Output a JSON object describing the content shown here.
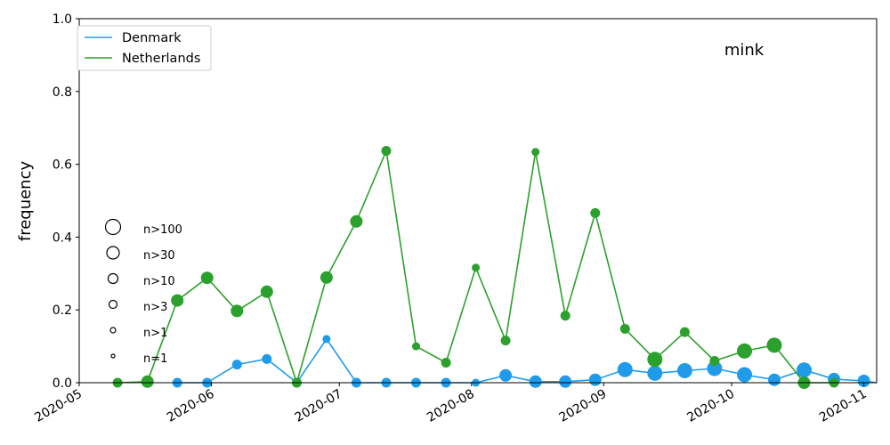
{
  "chart_data": {
    "type": "line",
    "annotation": "mink",
    "ylabel": "frequency",
    "xlabel": "",
    "xlim": [
      "2020-05-01",
      "2020-11-04"
    ],
    "ylim": [
      0,
      1.0
    ],
    "x_ticks": [
      "2020-05",
      "2020-06",
      "2020-07",
      "2020-08",
      "2020-09",
      "2020-10",
      "2020-11"
    ],
    "x_tick_dates": [
      "2020-05-01",
      "2020-06-01",
      "2020-07-01",
      "2020-08-01",
      "2020-09-01",
      "2020-10-01",
      "2020-11-01"
    ],
    "y_ticks": [
      "0.0",
      "0.2",
      "0.4",
      "0.6",
      "0.8",
      "1.0"
    ],
    "y_tick_values": [
      0,
      0.2,
      0.4,
      0.6,
      0.8,
      1.0
    ],
    "grid": false,
    "legend_placement": "top-left",
    "size_legend": [
      {
        "label": "n>100",
        "level": 6
      },
      {
        "label": "n>30",
        "level": 5
      },
      {
        "label": "n>10",
        "level": 4
      },
      {
        "label": "n>3",
        "level": 3
      },
      {
        "label": "n>1",
        "level": 2
      },
      {
        "label": "n=1",
        "level": 1
      }
    ],
    "series": [
      {
        "name": "Denmark",
        "color": "#1f9bea",
        "points": [
          {
            "x": "2020-05-24",
            "y": 0.0,
            "level": 4
          },
          {
            "x": "2020-05-31",
            "y": 0.0,
            "level": 4
          },
          {
            "x": "2020-06-07",
            "y": 0.05,
            "level": 4
          },
          {
            "x": "2020-06-14",
            "y": 0.065,
            "level": 4
          },
          {
            "x": "2020-06-21",
            "y": 0.0,
            "level": 4
          },
          {
            "x": "2020-06-28",
            "y": 0.12,
            "level": 3
          },
          {
            "x": "2020-07-05",
            "y": 0.0,
            "level": 4
          },
          {
            "x": "2020-07-12",
            "y": 0.0,
            "level": 4
          },
          {
            "x": "2020-07-19",
            "y": 0.0,
            "level": 4
          },
          {
            "x": "2020-07-26",
            "y": 0.0,
            "level": 4
          },
          {
            "x": "2020-08-02",
            "y": 0.0,
            "level": 3
          },
          {
            "x": "2020-08-09",
            "y": 0.02,
            "level": 5
          },
          {
            "x": "2020-08-16",
            "y": 0.003,
            "level": 5
          },
          {
            "x": "2020-08-23",
            "y": 0.003,
            "level": 5
          },
          {
            "x": "2020-08-30",
            "y": 0.008,
            "level": 5
          },
          {
            "x": "2020-09-06",
            "y": 0.036,
            "level": 6
          },
          {
            "x": "2020-09-13",
            "y": 0.026,
            "level": 6
          },
          {
            "x": "2020-09-20",
            "y": 0.033,
            "level": 6
          },
          {
            "x": "2020-09-27",
            "y": 0.039,
            "level": 6
          },
          {
            "x": "2020-10-04",
            "y": 0.022,
            "level": 6
          },
          {
            "x": "2020-10-11",
            "y": 0.008,
            "level": 5
          },
          {
            "x": "2020-10-18",
            "y": 0.035,
            "level": 6
          },
          {
            "x": "2020-10-25",
            "y": 0.01,
            "level": 5
          },
          {
            "x": "2020-11-01",
            "y": 0.005,
            "level": 5
          },
          {
            "x": "2020-11-04",
            "y": 0.0,
            "level": 0
          }
        ]
      },
      {
        "name": "Netherlands",
        "color": "#2ca02c",
        "points": [
          {
            "x": "2020-05-10",
            "y": 0.0,
            "level": 4
          },
          {
            "x": "2020-05-17",
            "y": 0.003,
            "level": 5
          },
          {
            "x": "2020-05-24",
            "y": 0.226,
            "level": 5
          },
          {
            "x": "2020-05-31",
            "y": 0.288,
            "level": 5
          },
          {
            "x": "2020-06-07",
            "y": 0.197,
            "level": 5
          },
          {
            "x": "2020-06-14",
            "y": 0.25,
            "level": 5
          },
          {
            "x": "2020-06-21",
            "y": 0.0,
            "level": 4
          },
          {
            "x": "2020-06-28",
            "y": 0.289,
            "level": 5
          },
          {
            "x": "2020-07-05",
            "y": 0.443,
            "level": 5
          },
          {
            "x": "2020-07-12",
            "y": 0.637,
            "level": 4
          },
          {
            "x": "2020-07-19",
            "y": 0.1,
            "level": 3
          },
          {
            "x": "2020-07-26",
            "y": 0.055,
            "level": 4
          },
          {
            "x": "2020-08-02",
            "y": 0.316,
            "level": 3
          },
          {
            "x": "2020-08-09",
            "y": 0.116,
            "level": 4
          },
          {
            "x": "2020-08-16",
            "y": 0.634,
            "level": 3
          },
          {
            "x": "2020-08-23",
            "y": 0.184,
            "level": 4
          },
          {
            "x": "2020-08-30",
            "y": 0.466,
            "level": 4
          },
          {
            "x": "2020-09-06",
            "y": 0.148,
            "level": 4
          },
          {
            "x": "2020-09-13",
            "y": 0.064,
            "level": 6
          },
          {
            "x": "2020-09-20",
            "y": 0.139,
            "level": 4
          },
          {
            "x": "2020-09-27",
            "y": 0.06,
            "level": 4
          },
          {
            "x": "2020-10-04",
            "y": 0.087,
            "level": 6
          },
          {
            "x": "2020-10-11",
            "y": 0.103,
            "level": 6
          },
          {
            "x": "2020-10-18",
            "y": 0.0,
            "level": 5
          },
          {
            "x": "2020-10-25",
            "y": 0.0,
            "level": 4
          }
        ]
      }
    ]
  }
}
